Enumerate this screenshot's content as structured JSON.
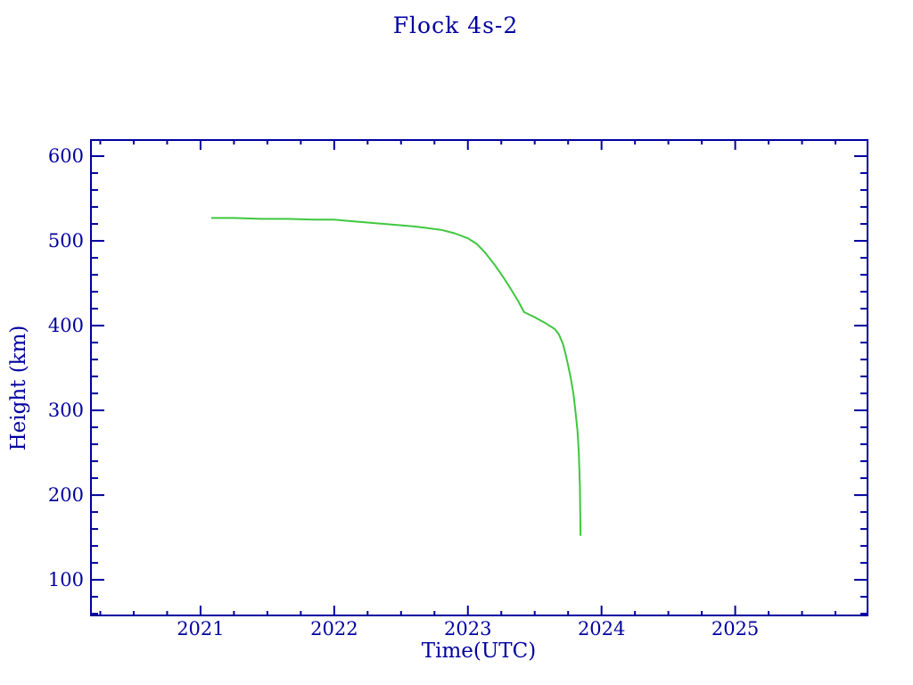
{
  "page": {
    "background": "#ffffff"
  },
  "chart_data": {
    "type": "line",
    "title": "Flock 4s-2",
    "xlabel": "Time(UTC)",
    "ylabel": "Height (km)",
    "x_min": 2020.18,
    "x_max": 2025.99,
    "y_min": 58,
    "y_max": 619,
    "x_major_ticks": [
      2021,
      2022,
      2023,
      2024,
      2025
    ],
    "x_minor_step": 0.25,
    "y_major_ticks": [
      100,
      200,
      300,
      400,
      500,
      600
    ],
    "y_minor_step": 20,
    "grid": false,
    "legend_position": "none",
    "axis_color": "#0000a0",
    "line_color": "#3fc73f",
    "series": [
      {
        "name": "Flock 4s-2 height",
        "points": [
          [
            2021.08,
            527
          ],
          [
            2021.25,
            527
          ],
          [
            2021.45,
            526
          ],
          [
            2021.65,
            526
          ],
          [
            2021.85,
            525
          ],
          [
            2022.0,
            525
          ],
          [
            2022.15,
            523
          ],
          [
            2022.3,
            521
          ],
          [
            2022.45,
            519
          ],
          [
            2022.6,
            517
          ],
          [
            2022.7,
            515
          ],
          [
            2022.8,
            513
          ],
          [
            2022.9,
            509
          ],
          [
            2023.0,
            503
          ],
          [
            2023.07,
            496
          ],
          [
            2023.13,
            486
          ],
          [
            2023.2,
            472
          ],
          [
            2023.27,
            456
          ],
          [
            2023.33,
            441
          ],
          [
            2023.38,
            428
          ],
          [
            2023.42,
            416
          ],
          [
            2023.5,
            410
          ],
          [
            2023.58,
            403
          ],
          [
            2023.65,
            396
          ],
          [
            2023.68,
            390
          ],
          [
            2023.71,
            379
          ],
          [
            2023.73,
            367
          ],
          [
            2023.75,
            353
          ],
          [
            2023.77,
            338
          ],
          [
            2023.79,
            319
          ],
          [
            2023.805,
            299
          ],
          [
            2023.82,
            276
          ],
          [
            2023.83,
            250
          ],
          [
            2023.838,
            210
          ],
          [
            2023.843,
            152
          ]
        ]
      }
    ]
  }
}
